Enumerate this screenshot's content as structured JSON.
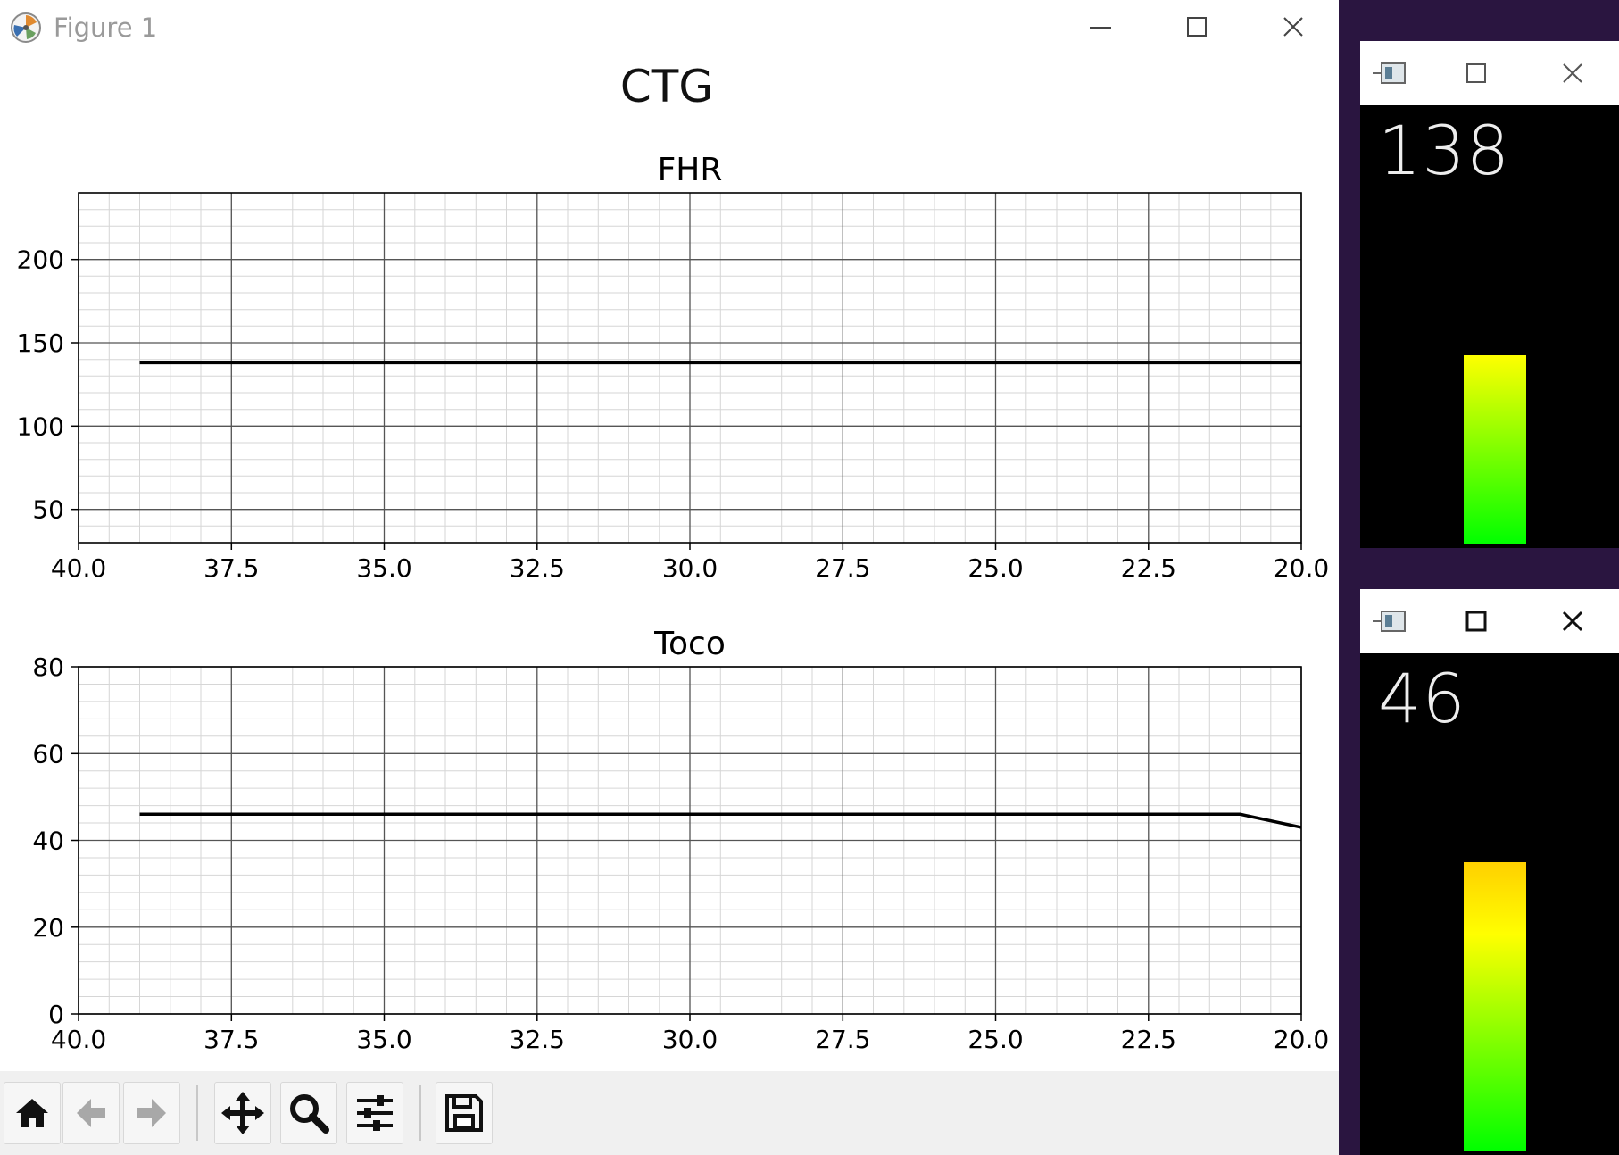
{
  "window": {
    "title": "Figure 1",
    "minimize_icon": "minimize-icon",
    "maximize_icon": "maximize-icon",
    "close_icon": "close-icon"
  },
  "figure": {
    "suptitle": "CTG"
  },
  "chart_data": [
    {
      "type": "line",
      "title": "FHR",
      "xlabel": "",
      "ylabel": "",
      "xlim": [
        40.0,
        20.0
      ],
      "ylim": [
        30,
        240
      ],
      "xticks": [
        "40.0",
        "37.5",
        "35.0",
        "32.5",
        "30.0",
        "27.5",
        "25.0",
        "22.5",
        "20.0"
      ],
      "yticks": [
        "50",
        "100",
        "150",
        "200"
      ],
      "grid": true,
      "series": [
        {
          "x": [
            39.0,
            20.0
          ],
          "y": [
            138,
            138
          ],
          "color": "#000000"
        }
      ]
    },
    {
      "type": "line",
      "title": "Toco",
      "xlabel": "",
      "ylabel": "",
      "xlim": [
        40.0,
        20.0
      ],
      "ylim": [
        0,
        80
      ],
      "xticks": [
        "40.0",
        "37.5",
        "35.0",
        "32.5",
        "30.0",
        "27.5",
        "25.0",
        "22.5",
        "20.0"
      ],
      "yticks": [
        "0",
        "20",
        "40",
        "60",
        "80"
      ],
      "grid": true,
      "series": [
        {
          "x": [
            39.0,
            21.0,
            20.0
          ],
          "y": [
            46,
            46,
            43
          ],
          "color": "#000000"
        }
      ]
    }
  ],
  "toolbar": {
    "buttons": [
      "home-icon",
      "back-icon",
      "forward-icon",
      "pan-icon",
      "zoom-icon",
      "configure-subplots-icon",
      "save-icon"
    ]
  },
  "fhr_window": {
    "value": "138",
    "level_fraction": 0.43,
    "gauge_colors": [
      "#ffff00",
      "#00ff00"
    ]
  },
  "toco_window": {
    "value": "46",
    "level_fraction": 0.58,
    "gauge_colors": [
      "#ffd000",
      "#ffff00",
      "#00ff00"
    ]
  }
}
